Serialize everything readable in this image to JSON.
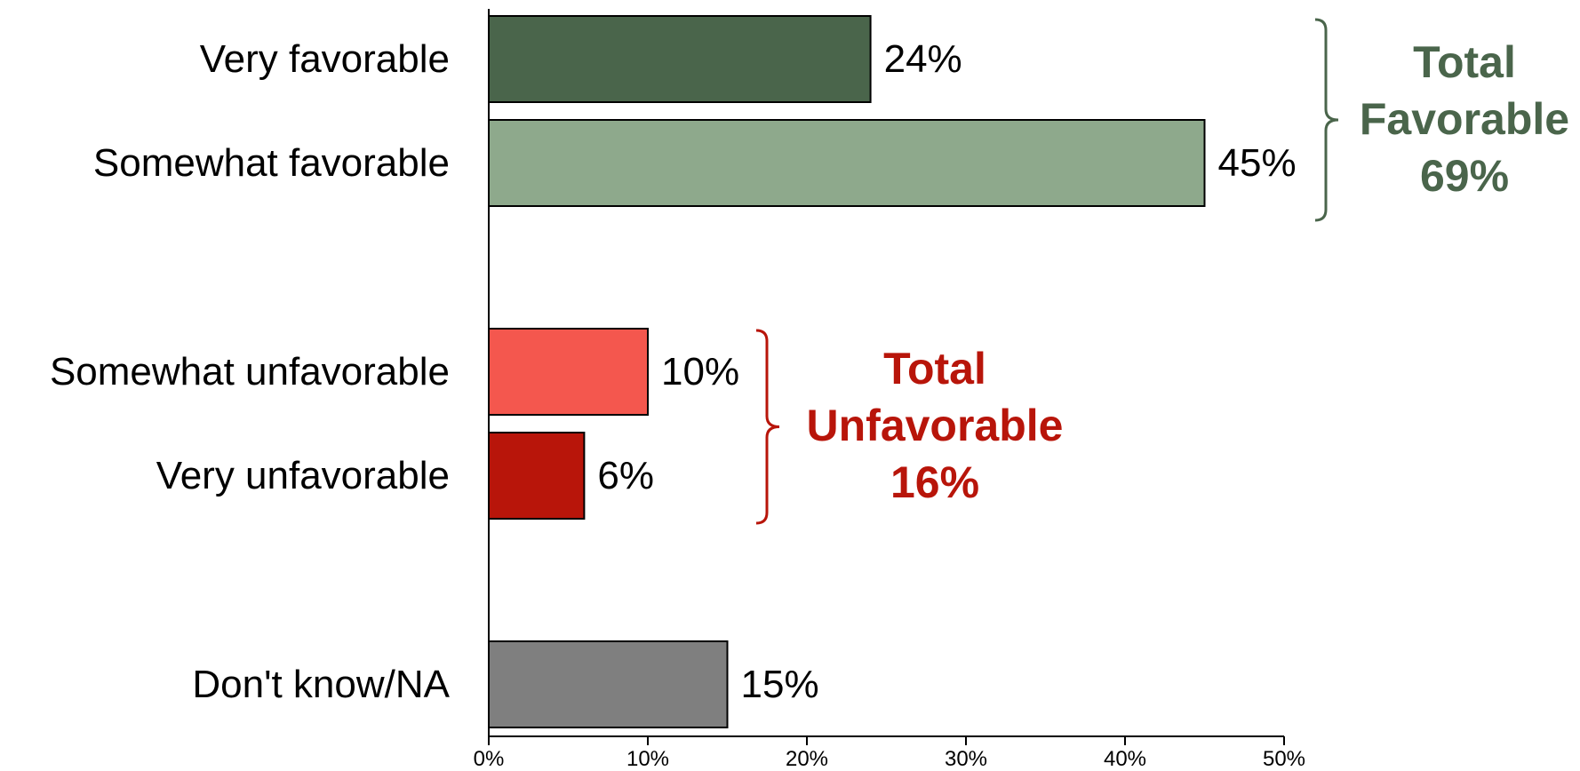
{
  "chart_data": {
    "type": "bar",
    "orientation": "horizontal",
    "categories": [
      "Very favorable",
      "Somewhat favorable",
      "Somewhat unfavorable",
      "Very unfavorable",
      "Don't know/NA"
    ],
    "values": [
      24,
      45,
      10,
      6,
      15
    ],
    "value_labels": [
      "24%",
      "45%",
      "10%",
      "6%",
      "15%"
    ],
    "bar_colors": [
      "#4a654b",
      "#8ea98c",
      "#f4574e",
      "#b8150a",
      "#7f7f7f"
    ],
    "xlim": [
      0,
      50
    ],
    "xticks": [
      0,
      10,
      20,
      30,
      40,
      50
    ],
    "xtick_labels": [
      "0%",
      "10%",
      "20%",
      "30%",
      "40%",
      "50%"
    ],
    "grid": false,
    "xlabel": "",
    "ylabel": "",
    "title": "",
    "annotations": [
      {
        "name": "favorable",
        "brackets_categories": [
          "Very favorable",
          "Somewhat favorable"
        ],
        "lines": [
          "Total",
          "Favorable",
          "69%"
        ],
        "value": 69,
        "color": "#4a654b"
      },
      {
        "name": "unfavorable",
        "brackets_categories": [
          "Somewhat unfavorable",
          "Very unfavorable"
        ],
        "lines": [
          "Total",
          "Unfavorable",
          "16%"
        ],
        "value": 16,
        "color": "#b8150a"
      }
    ]
  }
}
